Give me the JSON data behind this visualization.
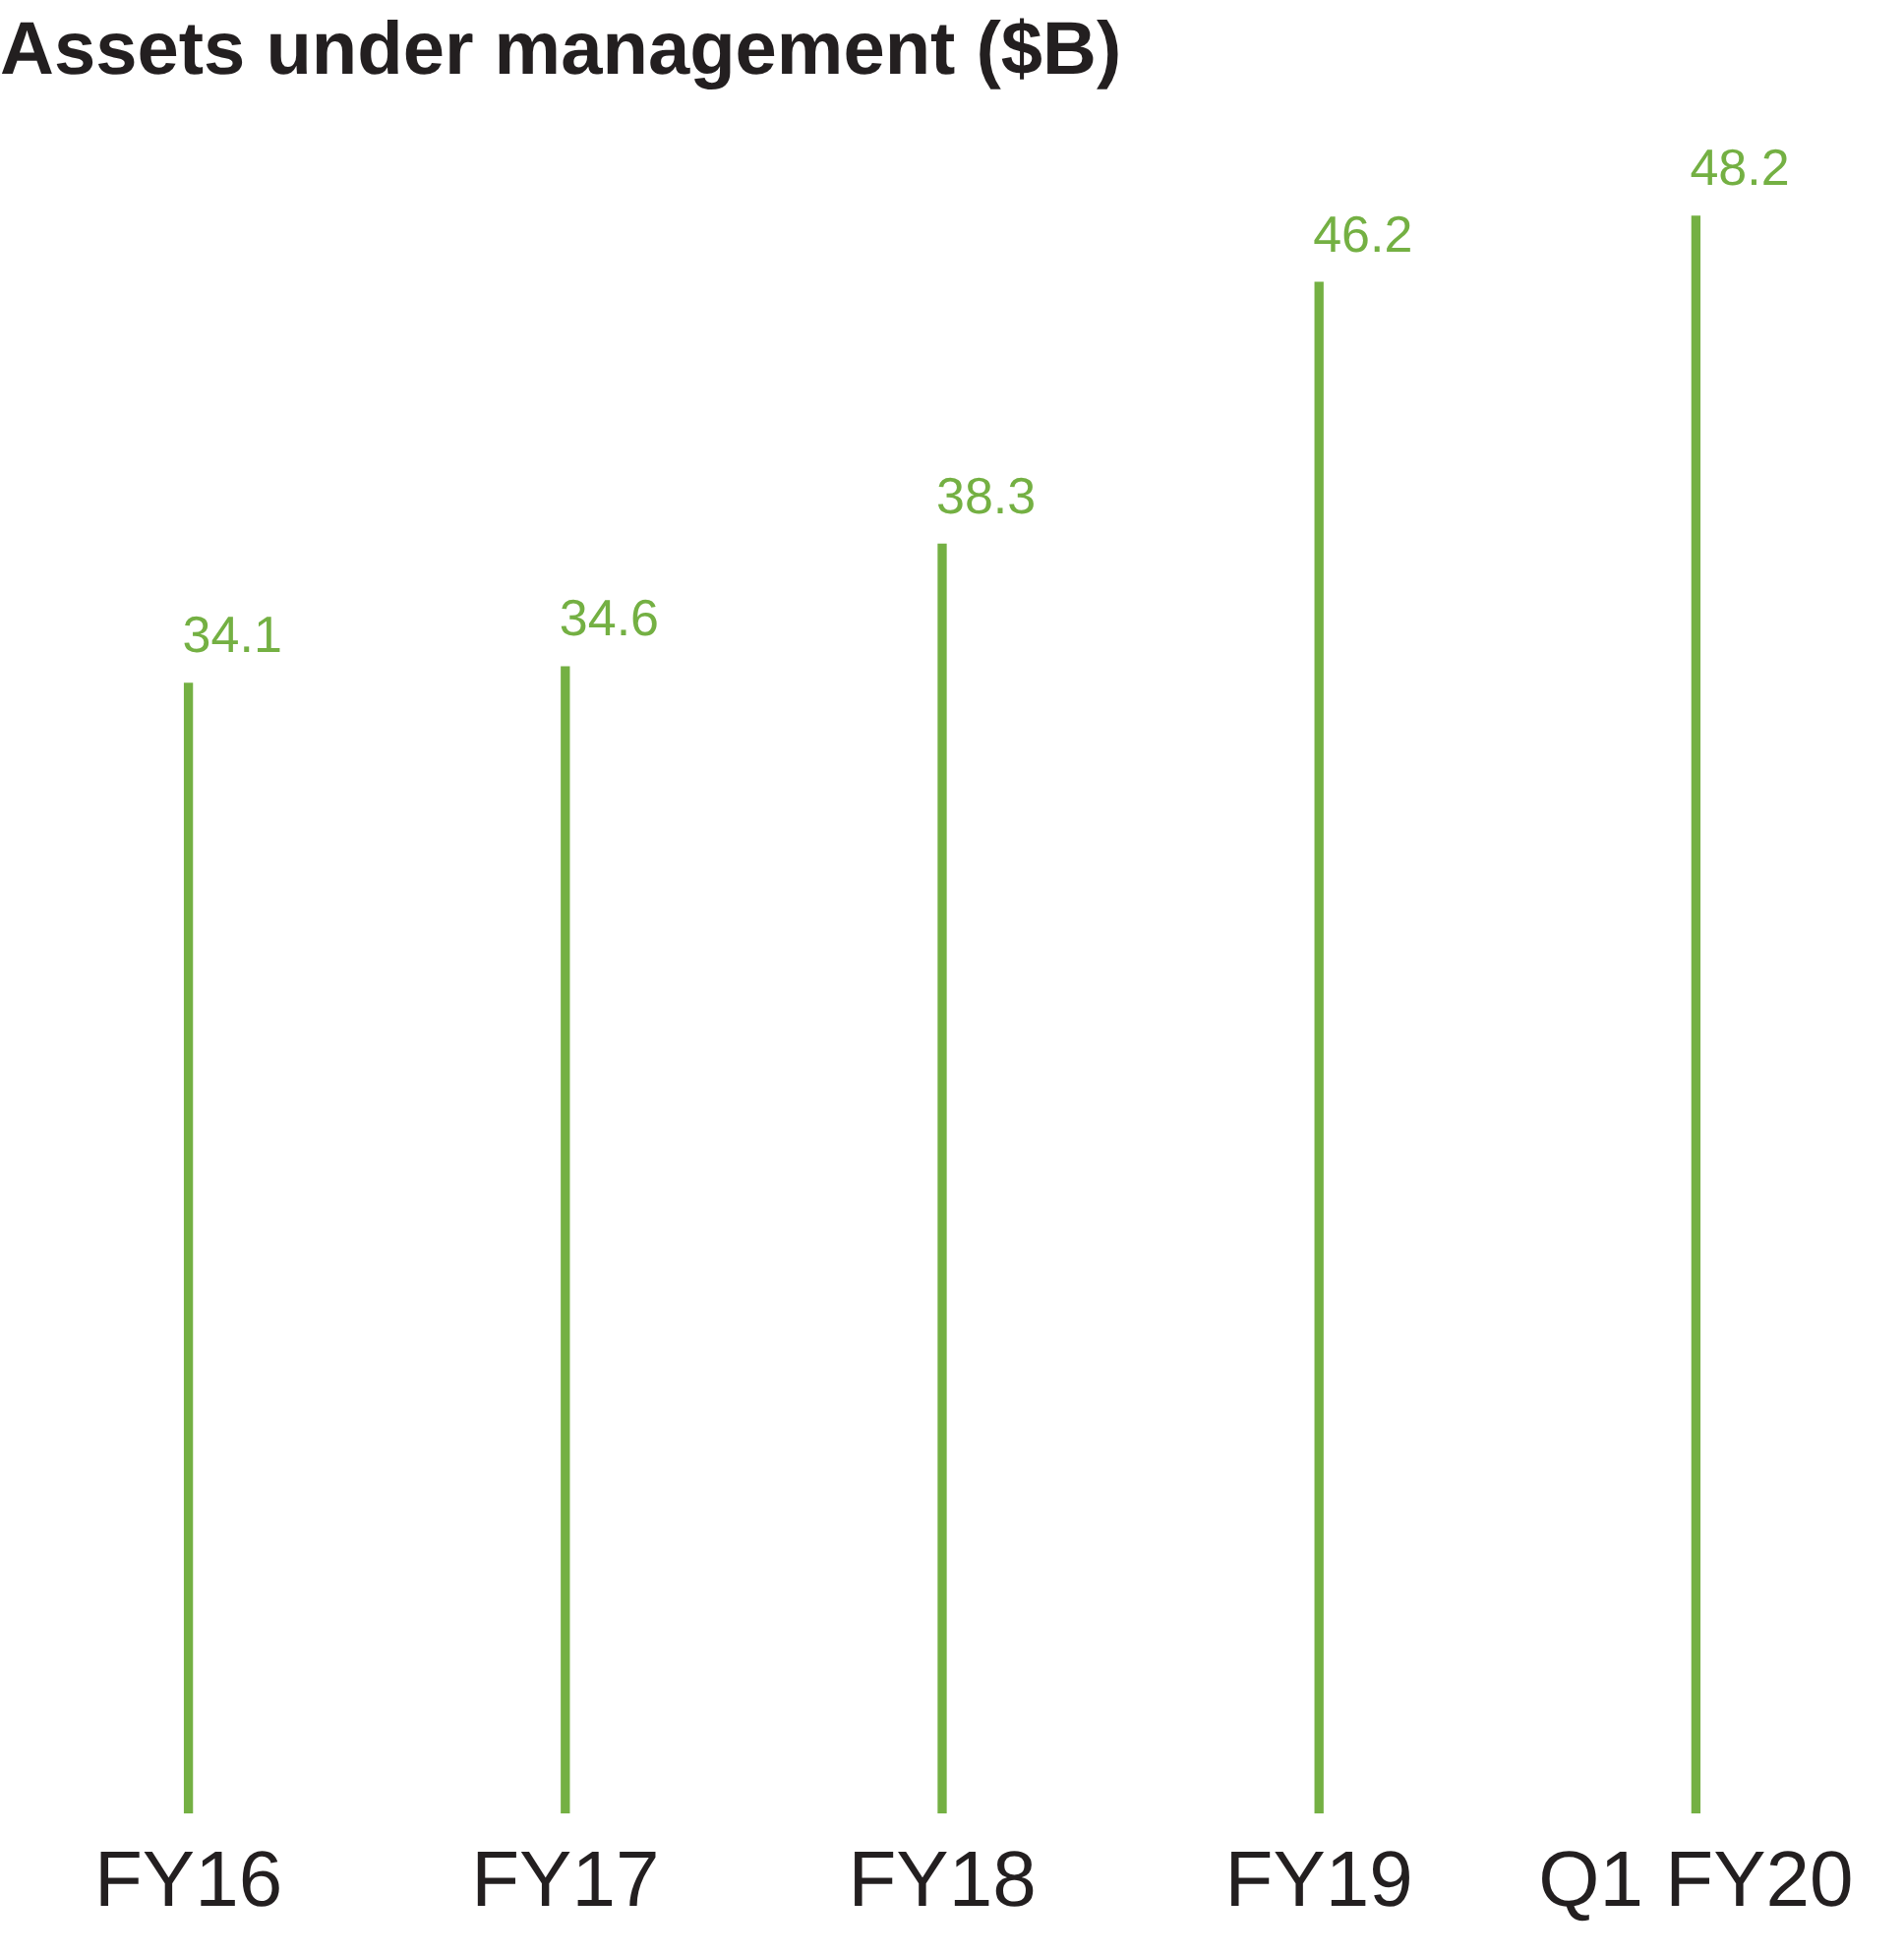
{
  "chart_data": {
    "type": "bar",
    "title": "Assets under management ($B)",
    "categories": [
      "FY16",
      "FY17",
      "FY18",
      "FY19",
      "Q1 FY20"
    ],
    "values": [
      34.1,
      34.6,
      38.3,
      46.2,
      48.2
    ],
    "color": "#74b043",
    "data_labels": true,
    "grid": false,
    "legend": false
  }
}
